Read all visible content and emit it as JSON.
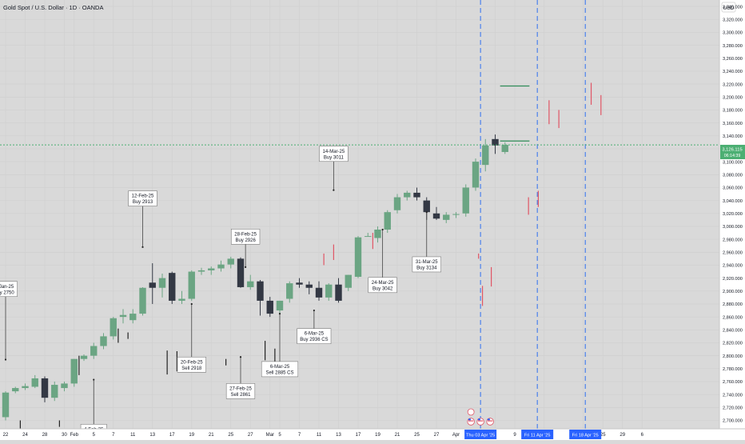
{
  "header": {
    "title": "Gold Spot / U.S. Dollar · 1D · OANDA",
    "currency": "USD"
  },
  "price_tag": {
    "price": "3,126.115",
    "countdown": "06:14:39"
  },
  "colors": {
    "background": "#d9d9d9",
    "up": "#6ba583",
    "down": "#333844",
    "tick": "#e05565",
    "price_line": "#4caf73",
    "event_line": "#3070f0",
    "axis_bg": "#ffffff",
    "label_bg": "#ffffff"
  },
  "chart_data": {
    "type": "candlestick",
    "y_axis": {
      "min": 2687,
      "max": 3350,
      "ticks": [
        2700,
        2720,
        2740,
        2760,
        2780,
        2800,
        2820,
        2840,
        2860,
        2880,
        2900,
        2920,
        2940,
        2960,
        2980,
        3000,
        3020,
        3040,
        3060,
        3080,
        3100,
        3120,
        3140,
        3160,
        3180,
        3200,
        3220,
        3240,
        3260,
        3280,
        3300,
        3320,
        3340
      ],
      "labels": [
        "2,700.000",
        "2,720.000",
        "2,740.000",
        "2,760.000",
        "2,780.000",
        "2,800.000",
        "2,820.000",
        "2,840.000",
        "2,860.000",
        "2,880.000",
        "2,900.000",
        "2,920.000",
        "2,940.000",
        "2,960.000",
        "2,980.000",
        "3,000.000",
        "3,020.000",
        "3,040.000",
        "3,060.000",
        "3,080.000",
        "3,100.000",
        "3,120.000",
        "3,140.000",
        "3,160.000",
        "3,180.000",
        "3,200.000",
        "3,220.000",
        "3,240.000",
        "3,260.000",
        "3,280.000",
        "3,300.000",
        "3,320.000",
        "3,340.000"
      ]
    },
    "x_axis": {
      "ticks": [
        {
          "i": 0,
          "label": "22"
        },
        {
          "i": 2,
          "label": "24"
        },
        {
          "i": 4,
          "label": "28"
        },
        {
          "i": 6,
          "label": "30"
        },
        {
          "i": 7,
          "label": "Feb"
        },
        {
          "i": 9,
          "label": "5"
        },
        {
          "i": 11,
          "label": "7"
        },
        {
          "i": 13,
          "label": "11"
        },
        {
          "i": 15,
          "label": "13"
        },
        {
          "i": 17,
          "label": "17"
        },
        {
          "i": 19,
          "label": "19"
        },
        {
          "i": 21,
          "label": "21"
        },
        {
          "i": 23,
          "label": "25"
        },
        {
          "i": 25,
          "label": "27"
        },
        {
          "i": 27,
          "label": "Mar"
        },
        {
          "i": 28,
          "label": "5"
        },
        {
          "i": 30,
          "label": "7"
        },
        {
          "i": 32,
          "label": "11"
        },
        {
          "i": 34,
          "label": "13"
        },
        {
          "i": 36,
          "label": "17"
        },
        {
          "i": 38,
          "label": "19"
        },
        {
          "i": 40,
          "label": "21"
        },
        {
          "i": 42,
          "label": "25"
        },
        {
          "i": 44,
          "label": "27"
        },
        {
          "i": 46,
          "label": "Apr"
        },
        {
          "i": 50,
          "label": "7"
        },
        {
          "i": 52,
          "label": "9"
        },
        {
          "i": 55,
          "label": "15"
        },
        {
          "i": 59,
          "label": "23"
        },
        {
          "i": 61,
          "label": "25"
        },
        {
          "i": 63,
          "label": "29"
        },
        {
          "i": 65,
          "label": "6"
        }
      ],
      "date_badges": [
        {
          "i": 48.5,
          "label": "Thu 03 Apr '25"
        },
        {
          "i": 54.3,
          "label": "Fri 11 Apr '25"
        },
        {
          "i": 59.2,
          "label": "Fri 18 Apr '25"
        }
      ]
    },
    "candles": [
      [
        2705,
        2745,
        2700,
        2743
      ],
      [
        2745,
        2752,
        2742,
        2750
      ],
      [
        2750,
        2757,
        2747,
        2753
      ],
      [
        2752,
        2770,
        2750,
        2765
      ],
      [
        2765,
        2768,
        2728,
        2735
      ],
      [
        2735,
        2760,
        2730,
        2755
      ],
      [
        2750,
        2760,
        2745,
        2757
      ],
      [
        2757,
        2795,
        2752,
        2795
      ],
      [
        2795,
        2802,
        2792,
        2800
      ],
      [
        2800,
        2820,
        2795,
        2815
      ],
      [
        2815,
        2835,
        2810,
        2830
      ],
      [
        2830,
        2860,
        2825,
        2858
      ],
      [
        2860,
        2872,
        2850,
        2863
      ],
      [
        2855,
        2872,
        2850,
        2865
      ],
      [
        2865,
        2906,
        2862,
        2905
      ],
      [
        2913,
        2943,
        2880,
        2905
      ],
      [
        2905,
        2927,
        2890,
        2920
      ],
      [
        2928,
        2930,
        2880,
        2885
      ],
      [
        2885,
        2900,
        2880,
        2888
      ],
      [
        2888,
        2932,
        2885,
        2930
      ],
      [
        2930,
        2936,
        2925,
        2932
      ],
      [
        2932,
        2938,
        2925,
        2935
      ],
      [
        2935,
        2947,
        2930,
        2941
      ],
      [
        2941,
        2953,
        2935,
        2950
      ],
      [
        2950,
        2952,
        2905,
        2906
      ],
      [
        2906,
        2925,
        2902,
        2915
      ],
      [
        2915,
        2917,
        2862,
        2885
      ],
      [
        2885,
        2891,
        2860,
        2865
      ],
      [
        2870,
        2885,
        2865,
        2885
      ],
      [
        2888,
        2915,
        2882,
        2912
      ],
      [
        2913,
        2920,
        2905,
        2910
      ],
      [
        2910,
        2915,
        2895,
        2905
      ],
      [
        2905,
        2915,
        2885,
        2890
      ],
      [
        2890,
        2912,
        2885,
        2910
      ],
      [
        2910,
        2920,
        2882,
        2885
      ],
      [
        2905,
        2925,
        2900,
        2925
      ],
      [
        2922,
        2985,
        2920,
        2983
      ],
      [
        2985,
        2990,
        2985,
        2985
      ],
      [
        2982,
        3000,
        2975,
        2995
      ],
      [
        2995,
        3025,
        2990,
        3022
      ],
      [
        3025,
        3050,
        3020,
        3045
      ],
      [
        3045,
        3055,
        3040,
        3052
      ],
      [
        3052,
        3060,
        3040,
        3045
      ],
      [
        3040,
        3045,
        3010,
        3022
      ],
      [
        3020,
        3030,
        3010,
        3012
      ],
      [
        3010,
        3022,
        3005,
        3018
      ],
      [
        3018,
        3022,
        3013,
        3019
      ],
      [
        3020,
        3065,
        3015,
        3060
      ],
      [
        3060,
        3105,
        3055,
        3100
      ],
      [
        3095,
        3135,
        3085,
        3125
      ],
      [
        3135,
        3142,
        3112,
        3125
      ],
      [
        3115,
        3130,
        3112,
        3126
      ]
    ],
    "future_ticks": [
      {
        "i": 48.7,
        "top": 2877,
        "bottom": 2908
      },
      {
        "i": 49.6,
        "top": 2907,
        "bottom": 2937
      },
      {
        "i": 53.4,
        "top": 3018,
        "bottom": 3045
      },
      {
        "i": 54.4,
        "top": 3030,
        "bottom": 3055
      },
      {
        "i": 55.5,
        "top": 3158,
        "bottom": 3195
      },
      {
        "i": 56.5,
        "top": 3152,
        "bottom": 3180
      },
      {
        "i": 59.8,
        "top": 3188,
        "bottom": 3222
      },
      {
        "i": 60.8,
        "top": 3172,
        "bottom": 3203
      }
    ],
    "hlines": [
      {
        "i1": 50.5,
        "i2": 53.5,
        "price": 3217
      },
      {
        "i1": 50.5,
        "i2": 53.5,
        "price": 3132
      }
    ],
    "past_ticks": [
      {
        "i": 1.5,
        "top": 2686,
        "bottom": 2700
      },
      {
        "i": 5.5,
        "top": 2690,
        "bottom": 2700
      },
      {
        "i": 7.5,
        "top": 2770,
        "bottom": 2800
      },
      {
        "i": 11.5,
        "top": 2820,
        "bottom": 2842
      },
      {
        "i": 12.5,
        "top": 2826,
        "bottom": 2836
      },
      {
        "i": 16.5,
        "top": 2771,
        "bottom": 2808
      },
      {
        "i": 17.5,
        "top": 2776,
        "bottom": 2807
      },
      {
        "i": 22.5,
        "top": 2785,
        "bottom": 2795
      },
      {
        "i": 26.5,
        "top": 2793,
        "bottom": 2823
      },
      {
        "i": 27.5,
        "top": 2772,
        "bottom": 2811
      },
      {
        "i": 32.5,
        "top": 2940,
        "bottom": 2958
      },
      {
        "i": 33.5,
        "top": 2948,
        "bottom": 2972
      },
      {
        "i": 37.5,
        "top": 2965,
        "bottom": 2990
      },
      {
        "i": 48.3,
        "top": 2950,
        "bottom": 2958
      }
    ],
    "current_price": 3126,
    "event_lines": [
      48.5,
      54.3,
      59.2
    ],
    "annotations": [
      {
        "lines": [
          "-Jan-25",
          "uy 2750"
        ],
        "i": 0,
        "ax": 0,
        "ay": 2794,
        "at": "above",
        "price": 2905
      },
      {
        "lines": [
          "4-Feb-25",
          "Buy 2886"
        ],
        "i": 9,
        "ax": 9,
        "ay": 2763,
        "at": "below",
        "price": 2694
      },
      {
        "lines": [
          "12-Feb-25",
          "Buy 2913"
        ],
        "i": 14,
        "ax": 14,
        "ay": 2968,
        "at": "above",
        "price": 3045
      },
      {
        "lines": [
          "20-Feb-25",
          "Sell 2918"
        ],
        "i": 19,
        "ax": 19,
        "ay": 2880,
        "at": "below",
        "price": 2798
      },
      {
        "lines": [
          "28-Feb-25",
          "Buy 2926"
        ],
        "i": 24.5,
        "ax": 24.5,
        "ay": 2937,
        "at": "above",
        "price": 2986
      },
      {
        "lines": [
          "27-Feb-25",
          "Sell 2861"
        ],
        "i": 24,
        "ax": 24,
        "ay": 2798,
        "at": "below",
        "price": 2757
      },
      {
        "lines": [
          "6-Mar-25",
          "Sell 2885 CS"
        ],
        "i": 28,
        "ax": 28,
        "ay": 2865,
        "at": "below",
        "price": 2791
      },
      {
        "lines": [
          "6-Mar-25",
          "Buy 2936 CS"
        ],
        "i": 31.5,
        "ax": 31.5,
        "ay": 2870,
        "at": "below",
        "price": 2842
      },
      {
        "lines": [
          "14-Mar-25",
          "Buy 3011"
        ],
        "i": 33.5,
        "ax": 33.5,
        "ay": 3056,
        "at": "above",
        "price": 3114
      },
      {
        "lines": [
          "24-Mar-25",
          "Buy 3042"
        ],
        "i": 38.5,
        "ax": 38.5,
        "ay": 2995,
        "at": "below",
        "price": 2921
      },
      {
        "lines": [
          "31-Mar-25",
          "Buy 3134"
        ],
        "i": 43,
        "ax": 43,
        "ay": 3022,
        "at": "below",
        "price": 2953
      }
    ]
  }
}
